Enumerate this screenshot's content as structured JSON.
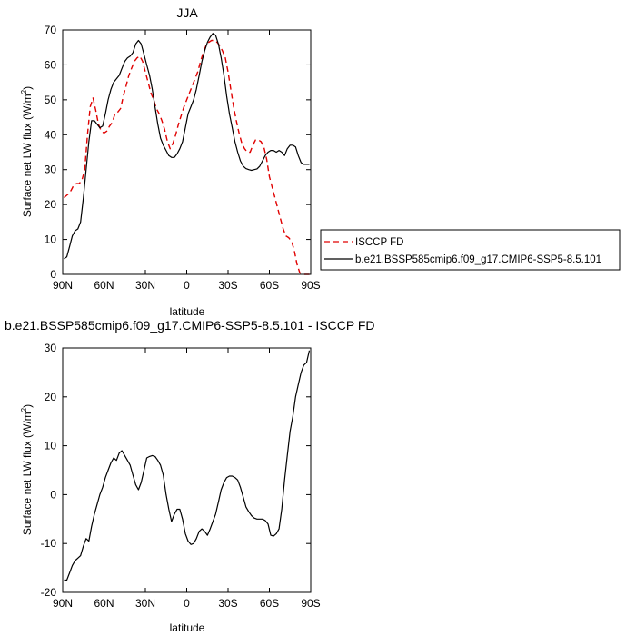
{
  "chart_data": [
    {
      "type": "line",
      "title": "JJA",
      "xlabel": "latitude",
      "ylabel_main": "Surface net LW flux (W/m",
      "ylabel_sup": "2",
      "ylabel_close": ")",
      "xlim": [
        -90,
        90
      ],
      "ylim": [
        0,
        70
      ],
      "xticks": [
        -90,
        -60,
        -30,
        0,
        30,
        60,
        90
      ],
      "xtick_labels": [
        "90N",
        "60N",
        "30N",
        "0",
        "30S",
        "60S",
        "90S"
      ],
      "yticks": [
        0,
        10,
        20,
        30,
        40,
        50,
        60,
        70
      ],
      "ytick_labels": [
        "0",
        "10",
        "20",
        "30",
        "40",
        "50",
        "60",
        "70"
      ],
      "legend_position": "right",
      "series": [
        {
          "name": "ISCCP FD",
          "color": "#e00000",
          "dash": "dashed",
          "x": [
            -89,
            -86,
            -84,
            -82,
            -80,
            -78,
            -76,
            -74,
            -72,
            -70,
            -68,
            -66,
            -64,
            -62,
            -60,
            -58,
            -56,
            -54,
            -52,
            -50,
            -48,
            -46,
            -44,
            -42,
            -40,
            -38,
            -36,
            -34,
            -32,
            -30,
            -28,
            -26,
            -24,
            -22,
            -20,
            -18,
            -16,
            -14,
            -12,
            -10,
            -8,
            -6,
            -4,
            -2,
            0,
            2,
            4,
            6,
            8,
            10,
            12,
            14,
            16,
            18,
            20,
            22,
            24,
            26,
            28,
            30,
            32,
            34,
            36,
            38,
            40,
            42,
            44,
            46,
            48,
            50,
            52,
            54,
            56,
            58,
            60,
            62,
            64,
            66,
            68,
            70,
            72,
            74,
            76,
            78,
            80,
            82,
            84,
            86,
            88,
            89
          ],
          "y": [
            22,
            23,
            24,
            25.5,
            26,
            26,
            27,
            30,
            40,
            48,
            50.5,
            47,
            43,
            41,
            40.5,
            41,
            42.5,
            43.5,
            46,
            46.5,
            47.5,
            51,
            54,
            57,
            59,
            61,
            62,
            62.5,
            61,
            58,
            55,
            52,
            50,
            47.5,
            46,
            44,
            41.5,
            38,
            36,
            37.5,
            40,
            43,
            45.5,
            48,
            50,
            52,
            54,
            56,
            58,
            61,
            63.5,
            65.5,
            66.5,
            67,
            67,
            66.5,
            65.5,
            64,
            62,
            58,
            53,
            48,
            44,
            40.5,
            37.5,
            36,
            35,
            35,
            37,
            38.5,
            38.5,
            38,
            36.5,
            33,
            28,
            25,
            22,
            19,
            16,
            13,
            11,
            10.5,
            9.5,
            7,
            3,
            0.5,
            0,
            0,
            0,
            0
          ]
        },
        {
          "name": "b.e21.BSSP585cmip6.f09_g17.CMIP6-SSP5-8.5.101",
          "color": "#000000",
          "dash": "solid",
          "x": [
            -89,
            -87,
            -85,
            -83,
            -81,
            -79,
            -77,
            -75,
            -73,
            -71,
            -69,
            -67,
            -65,
            -63,
            -61,
            -59,
            -57,
            -55,
            -53,
            -51,
            -49,
            -47,
            -45,
            -43,
            -41,
            -39,
            -37,
            -35,
            -33,
            -31,
            -29,
            -27,
            -25,
            -23,
            -21,
            -19,
            -17,
            -15,
            -13,
            -11,
            -9,
            -7,
            -5,
            -3,
            -1,
            1,
            3,
            5,
            7,
            9,
            11,
            13,
            15,
            17,
            19,
            21,
            23,
            25,
            27,
            29,
            31,
            33,
            35,
            37,
            39,
            41,
            43,
            45,
            47,
            49,
            51,
            53,
            55,
            57,
            59,
            61,
            63,
            65,
            67,
            69,
            71,
            73,
            75,
            77,
            79,
            81,
            83,
            85,
            87,
            89
          ],
          "y": [
            4.5,
            5,
            8,
            11,
            12.5,
            13,
            15,
            22,
            30,
            38,
            44,
            44,
            43,
            42,
            42.5,
            46,
            50,
            53,
            55,
            56,
            57,
            59,
            61,
            62,
            62.5,
            63.5,
            66,
            67,
            66,
            63,
            60,
            57,
            53,
            48,
            43,
            39,
            37,
            35.5,
            34,
            33.5,
            33.5,
            34.5,
            36,
            38,
            42,
            46,
            48,
            50,
            53,
            57,
            61,
            64,
            66.5,
            68,
            69,
            68.5,
            66,
            62,
            57,
            51,
            46,
            42,
            38,
            35,
            32.5,
            31,
            30.3,
            30,
            29.8,
            30,
            30.2,
            31,
            32.5,
            34,
            35,
            35.5,
            35.5,
            35,
            35.5,
            35,
            34,
            36,
            37,
            37,
            36.5,
            34,
            32,
            31.5,
            31.5,
            31.5
          ]
        }
      ]
    },
    {
      "type": "line",
      "title": "b.e21.BSSP585cmip6.f09_g17.CMIP6-SSP5-8.5.101 - ISCCP FD",
      "xlabel": "latitude",
      "ylabel_main": "Surface net LW flux (W/m",
      "ylabel_sup": "2",
      "ylabel_close": ")",
      "xlim": [
        -90,
        90
      ],
      "ylim": [
        -20,
        30
      ],
      "xticks": [
        -90,
        -60,
        -30,
        0,
        30,
        60,
        90
      ],
      "xtick_labels": [
        "90N",
        "60N",
        "30N",
        "0",
        "30S",
        "60S",
        "90S"
      ],
      "yticks": [
        -20,
        -10,
        0,
        10,
        20,
        30
      ],
      "ytick_labels": [
        "-20",
        "-10",
        "0",
        "10",
        "20",
        "30"
      ],
      "series": [
        {
          "color": "#000000",
          "dash": "solid",
          "x": [
            -89,
            -87,
            -85,
            -83,
            -81,
            -79,
            -77,
            -75,
            -73,
            -71,
            -69,
            -67,
            -65,
            -63,
            -61,
            -59,
            -57,
            -55,
            -53,
            -51,
            -49,
            -47,
            -45,
            -43,
            -41,
            -39,
            -37,
            -35,
            -33,
            -31,
            -29,
            -27,
            -25,
            -23,
            -21,
            -19,
            -17,
            -15,
            -13,
            -11,
            -9,
            -7,
            -5,
            -3,
            -1,
            1,
            3,
            5,
            7,
            9,
            11,
            13,
            15,
            17,
            19,
            21,
            23,
            25,
            27,
            29,
            31,
            33,
            35,
            37,
            39,
            41,
            43,
            45,
            47,
            49,
            51,
            53,
            55,
            57,
            59,
            61,
            63,
            65,
            67,
            69,
            71,
            73,
            75,
            77,
            79,
            81,
            83,
            85,
            87,
            89
          ],
          "y": [
            -17.5,
            -17.5,
            -16,
            -14.5,
            -13.5,
            -13,
            -12.5,
            -10.5,
            -9,
            -9.5,
            -6.5,
            -4,
            -2,
            0,
            1.5,
            3.5,
            5,
            6.5,
            7.5,
            7,
            8.5,
            9,
            8,
            7,
            6,
            4,
            2,
            1,
            2.5,
            5,
            7.5,
            7.8,
            8,
            7.8,
            7,
            6,
            4,
            0,
            -3,
            -5.5,
            -4,
            -3,
            -3,
            -5,
            -8,
            -9.5,
            -10.2,
            -10,
            -9,
            -7.5,
            -7,
            -7.5,
            -8.3,
            -7,
            -5.5,
            -4,
            -1.5,
            1,
            2.5,
            3.5,
            3.8,
            3.8,
            3.5,
            3,
            1.5,
            -0.5,
            -2.5,
            -3.5,
            -4.3,
            -4.8,
            -5,
            -5,
            -5,
            -5.3,
            -6,
            -8.3,
            -8.5,
            -8,
            -7,
            -3,
            3,
            8,
            13,
            16,
            20,
            22.5,
            25,
            26.5,
            27,
            29.5
          ]
        }
      ]
    }
  ]
}
